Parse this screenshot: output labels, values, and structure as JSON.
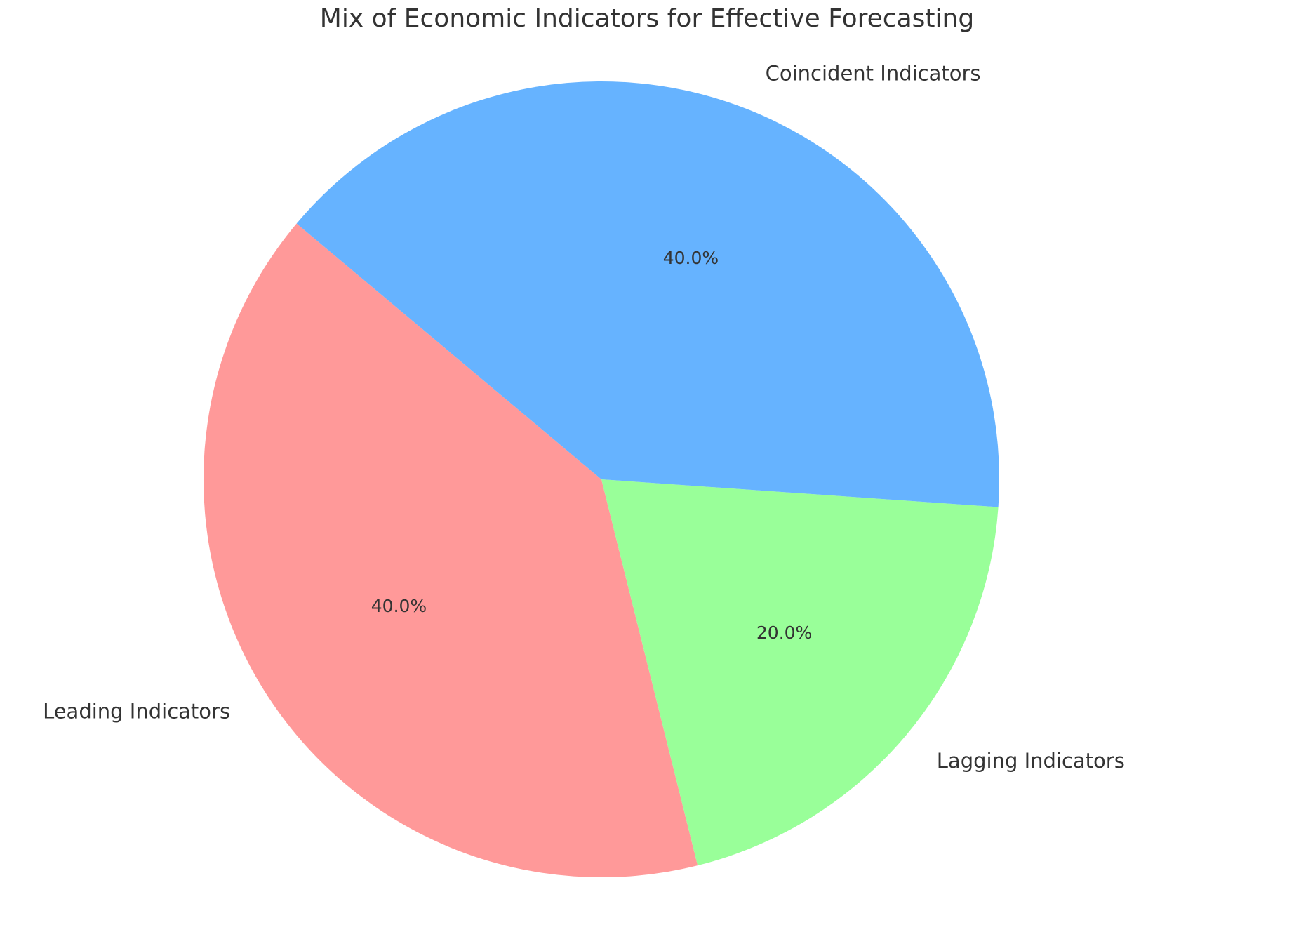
{
  "chart_data": {
    "type": "pie",
    "title": "Mix of Economic Indicators for Effective Forecasting",
    "slices": [
      {
        "label": "Leading Indicators",
        "value": 40,
        "percent_label": "40.0%",
        "color": "#ff9999"
      },
      {
        "label": "Lagging Indicators",
        "value": 20,
        "percent_label": "20.0%",
        "color": "#99ff99"
      },
      {
        "label": "Coincident Indicators",
        "value": 40,
        "percent_label": "40.0%",
        "color": "#66b3ff"
      }
    ],
    "start_angle_deg": 140,
    "direction": "counterclockwise",
    "legend": "none"
  }
}
